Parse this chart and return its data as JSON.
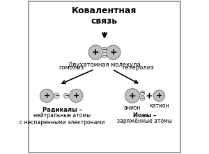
{
  "title": "Ковалентная\nсвязь",
  "diatomic_label": "Двухатомная молекула",
  "homolysis_label": "гомолиз",
  "heterolysis_label": "гетеролиз",
  "radicals_bold": "Радикалы –",
  "radicals_desc": "нейтральные атомы\nс неспаренными электронами",
  "ions_bold": "Ионы –",
  "ions_desc": "заряжённые атомы",
  "anion_label": "анион",
  "cation_label": "катион",
  "atom_fill": "#c0c0c0",
  "atom_edge": "#808080",
  "electron_fill": "#e0e0e0",
  "electron_edge": "#808080",
  "border_color": "#888888"
}
